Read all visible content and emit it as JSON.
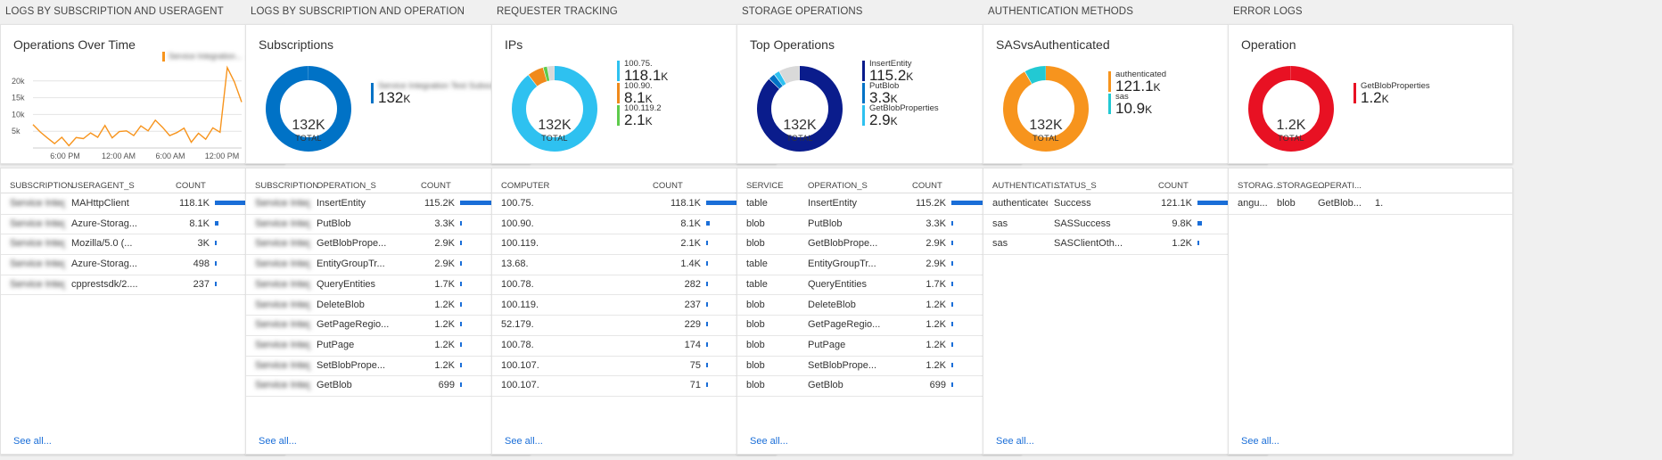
{
  "panels": [
    {
      "section": "LOGS BY SUBSCRIPTION AND USERAGENT",
      "tile_title": "Operations Over Time",
      "legend_name": "Service Integration...",
      "grid": {
        "headers": [
          "SUBSCRIPTION",
          "USERAGENT_S",
          "COUNT"
        ],
        "rows": [
          {
            "c1": "Service Integ...",
            "c2": "MAHttpClient",
            "count": "118.1K",
            "frac": 1.0
          },
          {
            "c1": "Service Integ...",
            "c2": "Azure-Storag...",
            "count": "8.1K",
            "frac": 0.069
          },
          {
            "c1": "Service Integ...",
            "c2": "Mozilla/5.0 (...",
            "count": "3K",
            "frac": 0.025
          },
          {
            "c1": "Service Integ...",
            "c2": "Azure-Storag...",
            "count": "498",
            "frac": 0.004
          },
          {
            "c1": "Service Integ...",
            "c2": "cpprestsdk/2....",
            "count": "237",
            "frac": 0.002
          }
        ],
        "see_all": "See all..."
      }
    },
    {
      "section": "LOGS BY SUBSCRIPTION AND OPERATION",
      "tile_title": "Subscriptions",
      "donut": {
        "value": "132K",
        "label": "TOTAL"
      },
      "legend": [
        {
          "name": "Service Integration Test Subscription",
          "value": "132",
          "unit": "K",
          "color": "#0072c6",
          "blur": true
        }
      ],
      "grid": {
        "headers": [
          "SUBSCRIPTION",
          "OPERATION_S",
          "COUNT"
        ],
        "rows": [
          {
            "c1": "Service Integ...",
            "c2": "InsertEntity",
            "count": "115.2K",
            "frac": 1.0
          },
          {
            "c1": "Service Integ...",
            "c2": "PutBlob",
            "count": "3.3K",
            "frac": 0.029
          },
          {
            "c1": "Service Integ...",
            "c2": "GetBlobPrope...",
            "count": "2.9K",
            "frac": 0.025
          },
          {
            "c1": "Service Integ...",
            "c2": "EntityGroupTr...",
            "count": "2.9K",
            "frac": 0.025
          },
          {
            "c1": "Service Integ...",
            "c2": "QueryEntities",
            "count": "1.7K",
            "frac": 0.015
          },
          {
            "c1": "Service Integ...",
            "c2": "DeleteBlob",
            "count": "1.2K",
            "frac": 0.01
          },
          {
            "c1": "Service Integ...",
            "c2": "GetPageRegio...",
            "count": "1.2K",
            "frac": 0.01
          },
          {
            "c1": "Service Integ...",
            "c2": "PutPage",
            "count": "1.2K",
            "frac": 0.01
          },
          {
            "c1": "Service Integ...",
            "c2": "SetBlobPrope...",
            "count": "1.2K",
            "frac": 0.01
          },
          {
            "c1": "Service Integ...",
            "c2": "GetBlob",
            "count": "699",
            "frac": 0.006
          }
        ],
        "see_all": "See all..."
      }
    },
    {
      "section": "REQUESTER TRACKING",
      "tile_title": "IPs",
      "donut": {
        "value": "132K",
        "label": "TOTAL"
      },
      "legend": [
        {
          "name": "100.75.",
          "value": "118.1",
          "unit": "K",
          "color": "#2ec1f0"
        },
        {
          "name": "100.90.",
          "value": "8.1",
          "unit": "K",
          "color": "#f08a1c"
        },
        {
          "name": "100.119.2",
          "value": "2.1",
          "unit": "K",
          "color": "#5ecb4c"
        }
      ],
      "grid": {
        "headers": [
          "COMPUTER",
          "",
          "COUNT"
        ],
        "rows": [
          {
            "c1": "100.75.",
            "c2": "",
            "count": "118.1K",
            "frac": 1.0
          },
          {
            "c1": "100.90.",
            "c2": "",
            "count": "8.1K",
            "frac": 0.069
          },
          {
            "c1": "100.119.",
            "c2": "",
            "count": "2.1K",
            "frac": 0.018
          },
          {
            "c1": "13.68.",
            "c2": "",
            "count": "1.4K",
            "frac": 0.012
          },
          {
            "c1": "100.78.",
            "c2": "",
            "count": "282",
            "frac": 0.003
          },
          {
            "c1": "100.119.",
            "c2": "",
            "count": "237",
            "frac": 0.002
          },
          {
            "c1": "52.179.",
            "c2": "",
            "count": "229",
            "frac": 0.002
          },
          {
            "c1": "100.78.",
            "c2": "",
            "count": "174",
            "frac": 0.002
          },
          {
            "c1": "100.107.",
            "c2": "",
            "count": "75",
            "frac": 0.001
          },
          {
            "c1": "100.107.",
            "c2": "",
            "count": "71",
            "frac": 0.001
          }
        ],
        "see_all": "See all..."
      }
    },
    {
      "section": "STORAGE OPERATIONS",
      "tile_title": "Top Operations",
      "donut": {
        "value": "132K",
        "label": "TOTAL"
      },
      "legend": [
        {
          "name": "InsertEntity",
          "value": "115.2",
          "unit": "K",
          "color": "#0a1c8c"
        },
        {
          "name": "PutBlob",
          "value": "3.3",
          "unit": "K",
          "color": "#0072c6"
        },
        {
          "name": "GetBlobProperties",
          "value": "2.9",
          "unit": "K",
          "color": "#2ec1f0"
        }
      ],
      "grid": {
        "headers": [
          "SERVICE",
          "OPERATION_S",
          "COUNT"
        ],
        "rows": [
          {
            "c1": "table",
            "c2": "InsertEntity",
            "count": "115.2K",
            "frac": 1.0
          },
          {
            "c1": "blob",
            "c2": "PutBlob",
            "count": "3.3K",
            "frac": 0.029
          },
          {
            "c1": "blob",
            "c2": "GetBlobPrope...",
            "count": "2.9K",
            "frac": 0.025
          },
          {
            "c1": "table",
            "c2": "EntityGroupTr...",
            "count": "2.9K",
            "frac": 0.025
          },
          {
            "c1": "table",
            "c2": "QueryEntities",
            "count": "1.7K",
            "frac": 0.015
          },
          {
            "c1": "blob",
            "c2": "DeleteBlob",
            "count": "1.2K",
            "frac": 0.01
          },
          {
            "c1": "blob",
            "c2": "GetPageRegio...",
            "count": "1.2K",
            "frac": 0.01
          },
          {
            "c1": "blob",
            "c2": "PutPage",
            "count": "1.2K",
            "frac": 0.01
          },
          {
            "c1": "blob",
            "c2": "SetBlobPrope...",
            "count": "1.2K",
            "frac": 0.01
          },
          {
            "c1": "blob",
            "c2": "GetBlob",
            "count": "699",
            "frac": 0.006
          }
        ],
        "see_all": "See all..."
      }
    },
    {
      "section": "AUTHENTICATION METHODS",
      "tile_title": "SASvsAuthenticated",
      "donut": {
        "value": "132K",
        "label": "TOTAL"
      },
      "legend": [
        {
          "name": "authenticated",
          "value": "121.1",
          "unit": "K",
          "color": "#f7941d"
        },
        {
          "name": "sas",
          "value": "10.9",
          "unit": "K",
          "color": "#22c9d3"
        }
      ],
      "grid": {
        "headers": [
          "AUTHENTICATI...",
          "STATUS_S",
          "COUNT"
        ],
        "rows": [
          {
            "c1": "authenticated",
            "c2": "Success",
            "count": "121.1K",
            "frac": 1.0
          },
          {
            "c1": "sas",
            "c2": "SASSuccess",
            "count": "9.8K",
            "frac": 0.081
          },
          {
            "c1": "sas",
            "c2": "SASClientOth...",
            "count": "1.2K",
            "frac": 0.01
          }
        ],
        "see_all": "See all..."
      }
    },
    {
      "section": "ERROR LOGS",
      "tile_title": "Operation",
      "donut": {
        "value": "1.2K",
        "label": "TOTAL"
      },
      "legend": [
        {
          "name": "GetBlobProperties",
          "value": "1.2",
          "unit": "K",
          "color": "#e81123"
        }
      ],
      "grid": {
        "headers": [
          "STORAG...",
          "STORAGE...",
          "OPERATI..."
        ],
        "rows": [
          {
            "c1": "angu...",
            "c2": "blob",
            "c3": "GetBlob...",
            "count": "1.",
            "frac": 0
          }
        ],
        "see_all": "See all..."
      }
    }
  ],
  "chart_data": [
    {
      "type": "line",
      "title": "Operations Over Time",
      "x_ticks": [
        "6:00 PM",
        "12:00 AM",
        "6:00 AM",
        "12:00 PM"
      ],
      "y_ticks": [
        "5k",
        "10k",
        "15k",
        "20k"
      ],
      "ylim": [
        0,
        25000
      ],
      "series": [
        {
          "color": "#f7941d",
          "values": [
            7000,
            4800,
            3000,
            1300,
            3200,
            700,
            3100,
            2800,
            4500,
            3200,
            6700,
            3000,
            4900,
            5100,
            3700,
            6600,
            5100,
            8300,
            6200,
            3700,
            4600,
            5900,
            1700,
            4400,
            2600,
            6000,
            4700,
            24000,
            19700,
            13700
          ]
        }
      ]
    },
    {
      "type": "pie",
      "title": "Subscriptions",
      "slices": [
        {
          "value": 132000,
          "color": "#0072c6"
        }
      ]
    },
    {
      "type": "pie",
      "title": "IPs",
      "slices": [
        {
          "label": "100.75.",
          "value": 118100,
          "color": "#2ec1f0"
        },
        {
          "label": "100.90.",
          "value": 8100,
          "color": "#f08a1c"
        },
        {
          "label": "100.119.2",
          "value": 2100,
          "color": "#5ecb4c"
        },
        {
          "value": 3700,
          "color": "#d9d9d9"
        }
      ]
    },
    {
      "type": "pie",
      "title": "Top Operations",
      "slices": [
        {
          "label": "InsertEntity",
          "value": 115200,
          "color": "#0a1c8c"
        },
        {
          "label": "PutBlob",
          "value": 3300,
          "color": "#0072c6"
        },
        {
          "label": "GetBlobProperties",
          "value": 2900,
          "color": "#2ec1f0"
        },
        {
          "value": 10600,
          "color": "#d9d9d9"
        }
      ]
    },
    {
      "type": "pie",
      "title": "SASvsAuthenticated",
      "slices": [
        {
          "label": "authenticated",
          "value": 121100,
          "color": "#f7941d"
        },
        {
          "label": "sas",
          "value": 10900,
          "color": "#22c9d3"
        }
      ]
    },
    {
      "type": "pie",
      "title": "Operation",
      "slices": [
        {
          "label": "GetBlobProperties",
          "value": 1200,
          "color": "#e81123"
        }
      ]
    }
  ]
}
